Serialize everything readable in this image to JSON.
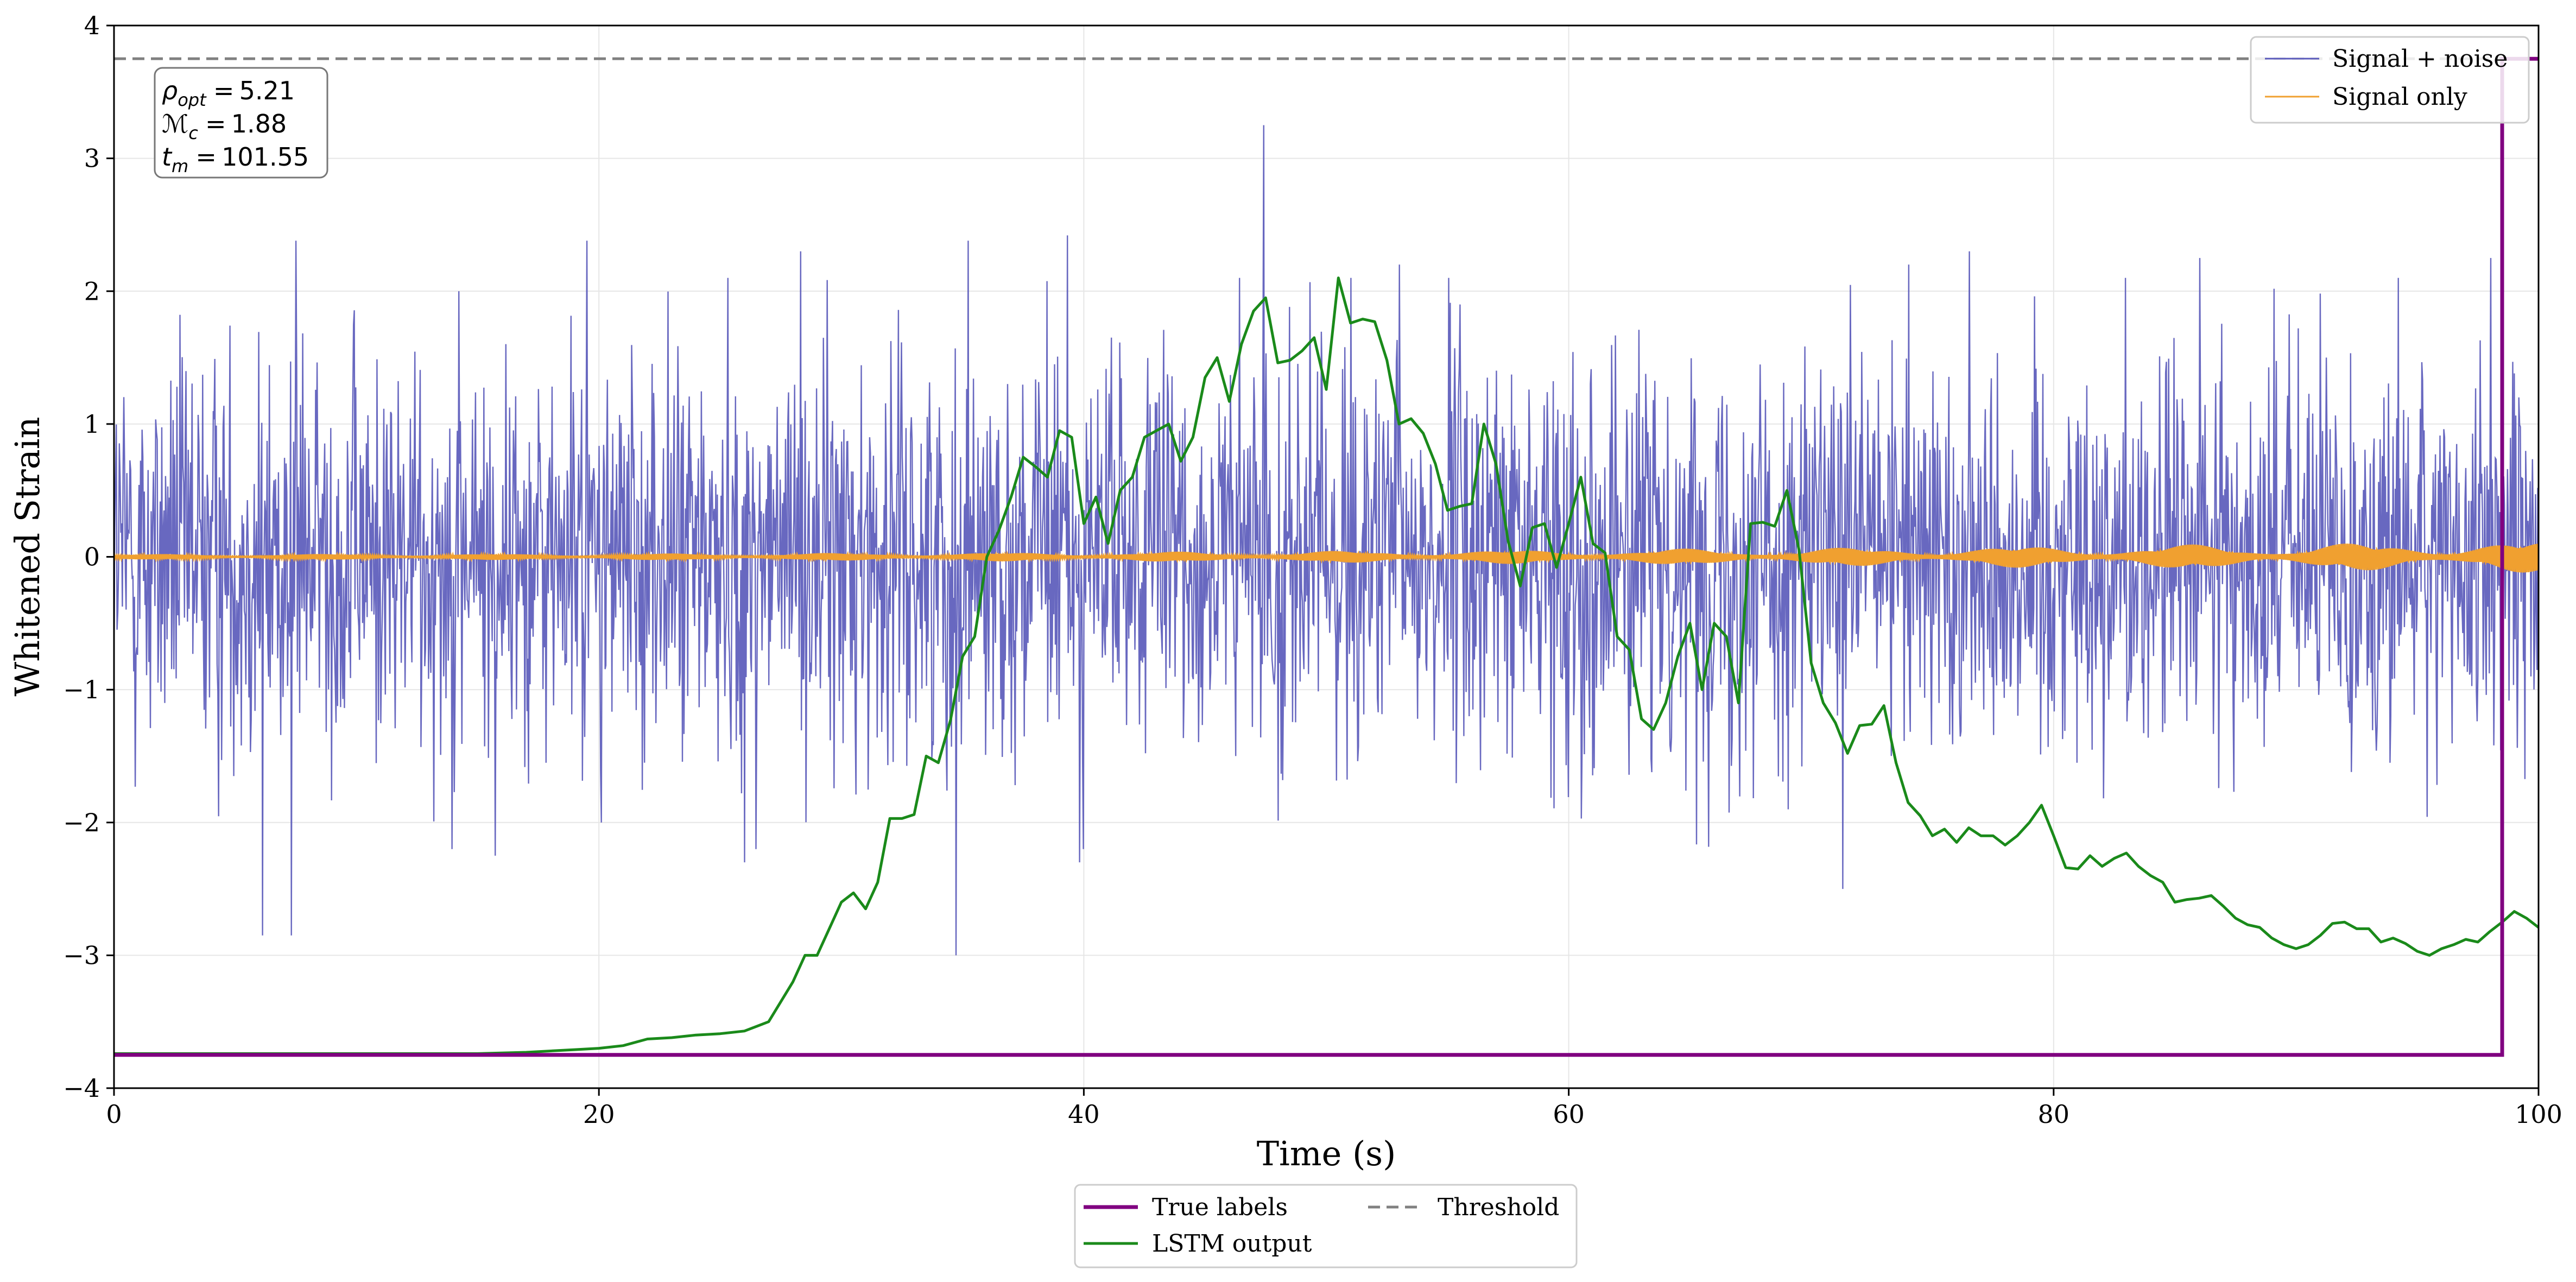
{
  "chart_data": {
    "type": "line",
    "title": "",
    "xlabel": "Time (s)",
    "ylabel": "Whitened Strain",
    "xlim": [
      0,
      100
    ],
    "ylim": [
      -4,
      4
    ],
    "xticks": [
      0,
      20,
      40,
      60,
      80,
      100
    ],
    "xtick_labels": [
      "0",
      "20",
      "40",
      "60",
      "80",
      "100"
    ],
    "yticks": [
      -4,
      -3,
      -2,
      -1,
      0,
      1,
      2,
      3,
      4
    ],
    "ytick_labels": [
      "−4",
      "−3",
      "−2",
      "−1",
      "0",
      "1",
      "2",
      "3",
      "4"
    ],
    "grid": true,
    "annotation": {
      "lines": [
        {
          "sym": "ρ",
          "sub": "opt",
          "value": "5.21"
        },
        {
          "sym": "ℳ",
          "sub": "c",
          "value": "1.88"
        },
        {
          "sym": "t",
          "sub": "m",
          "value": "101.55"
        }
      ]
    },
    "legend_upper": {
      "placement": "top-right",
      "entries": [
        {
          "label": "Signal + noise",
          "color": "#5b5bbb"
        },
        {
          "label": "Signal only",
          "color": "#f0a030"
        }
      ]
    },
    "legend_lower": {
      "placement": "bottom-center",
      "entries": [
        {
          "label": "True labels",
          "color": "#800080",
          "style": "solid"
        },
        {
          "label": "LSTM output",
          "color": "#1a8a1a",
          "style": "solid"
        },
        {
          "label": "Threshold",
          "color": "#808080",
          "style": "dashed"
        }
      ]
    },
    "series": [
      {
        "name": "Signal + noise",
        "color": "#5b5bbb",
        "style": "noise",
        "sigma": 0.75,
        "x_range": [
          0,
          100
        ],
        "n_samples": 3200,
        "spikes": [
          [
            6.1,
            -2.85
          ],
          [
            7.3,
            -2.85
          ],
          [
            7.5,
            2.38
          ],
          [
            14.2,
            2.0
          ],
          [
            15.7,
            -2.25
          ],
          [
            19.5,
            2.38
          ],
          [
            20.1,
            -2.0
          ],
          [
            26.0,
            -2.3
          ],
          [
            28.3,
            2.3
          ],
          [
            34.7,
            -3.0
          ],
          [
            35.2,
            2.38
          ],
          [
            39.3,
            2.42
          ],
          [
            39.8,
            -2.3
          ],
          [
            47.4,
            3.25
          ],
          [
            51.0,
            2.1
          ],
          [
            53.0,
            2.2
          ],
          [
            55.5,
            1.9
          ],
          [
            71.3,
            -2.5
          ],
          [
            74.0,
            2.2
          ],
          [
            76.5,
            2.3
          ],
          [
            86.0,
            2.25
          ],
          [
            98.0,
            2.25
          ]
        ]
      },
      {
        "name": "Signal only",
        "color": "#f0a030",
        "style": "chirp",
        "x_range": [
          0,
          100
        ],
        "amplitude_start": 0.02,
        "amplitude_end": 0.12
      },
      {
        "name": "True labels",
        "color": "#800080",
        "style": "step",
        "points": [
          [
            0,
            -3.75
          ],
          [
            98.5,
            -3.75
          ],
          [
            98.5,
            3.75
          ],
          [
            100,
            3.75
          ]
        ]
      },
      {
        "name": "LSTM output",
        "color": "#1a8a1a",
        "style": "line",
        "points": [
          [
            0,
            -3.74
          ],
          [
            10,
            -3.74
          ],
          [
            15,
            -3.74
          ],
          [
            17,
            -3.73
          ],
          [
            19,
            -3.71
          ],
          [
            20,
            -3.7
          ],
          [
            21,
            -3.68
          ],
          [
            22,
            -3.63
          ],
          [
            23,
            -3.62
          ],
          [
            24,
            -3.6
          ],
          [
            25,
            -3.59
          ],
          [
            26,
            -3.57
          ],
          [
            27,
            -3.5
          ],
          [
            28,
            -3.2
          ],
          [
            28.5,
            -3.0
          ],
          [
            29,
            -3.0
          ],
          [
            29.5,
            -2.8
          ],
          [
            30,
            -2.6
          ],
          [
            30.5,
            -2.53
          ],
          [
            31,
            -2.65
          ],
          [
            31.5,
            -2.45
          ],
          [
            32,
            -1.97
          ],
          [
            32.5,
            -1.97
          ],
          [
            33,
            -1.94
          ],
          [
            33.5,
            -1.5
          ],
          [
            34,
            -1.55
          ],
          [
            34.5,
            -1.23
          ],
          [
            35,
            -0.75
          ],
          [
            35.5,
            -0.6
          ],
          [
            36,
            0.0
          ],
          [
            36.5,
            0.2
          ],
          [
            37,
            0.45
          ],
          [
            37.5,
            0.75
          ],
          [
            38,
            0.68
          ],
          [
            38.5,
            0.6
          ],
          [
            39,
            0.95
          ],
          [
            39.5,
            0.9
          ],
          [
            40,
            0.25
          ],
          [
            40.5,
            0.45
          ],
          [
            41,
            0.1
          ],
          [
            41.5,
            0.5
          ],
          [
            42,
            0.6
          ],
          [
            42.5,
            0.9
          ],
          [
            43,
            0.95
          ],
          [
            43.5,
            1.0
          ],
          [
            44,
            0.72
          ],
          [
            44.5,
            0.9
          ],
          [
            45,
            1.35
          ],
          [
            45.5,
            1.5
          ],
          [
            46,
            1.17
          ],
          [
            46.5,
            1.6
          ],
          [
            47,
            1.85
          ],
          [
            47.5,
            1.95
          ],
          [
            48,
            1.46
          ],
          [
            48.5,
            1.48
          ],
          [
            49,
            1.55
          ],
          [
            49.5,
            1.65
          ],
          [
            50,
            1.26
          ],
          [
            50.5,
            2.1
          ],
          [
            51,
            1.76
          ],
          [
            51.5,
            1.79
          ],
          [
            52,
            1.77
          ],
          [
            52.5,
            1.48
          ],
          [
            53,
            1.0
          ],
          [
            53.5,
            1.04
          ],
          [
            54,
            0.93
          ],
          [
            54.5,
            0.7
          ],
          [
            55,
            0.35
          ],
          [
            55.5,
            0.38
          ],
          [
            56,
            0.4
          ],
          [
            56.5,
            1.0
          ],
          [
            57,
            0.7
          ],
          [
            57.5,
            0.12
          ],
          [
            58,
            -0.22
          ],
          [
            58.5,
            0.22
          ],
          [
            59,
            0.25
          ],
          [
            59.5,
            -0.08
          ],
          [
            60,
            0.25
          ],
          [
            60.5,
            0.6
          ],
          [
            61,
            0.1
          ],
          [
            61.5,
            0.03
          ],
          [
            62,
            -0.6
          ],
          [
            62.5,
            -0.7
          ],
          [
            63,
            -1.22
          ],
          [
            63.5,
            -1.3
          ],
          [
            64,
            -1.1
          ],
          [
            64.5,
            -0.75
          ],
          [
            65,
            -0.5
          ],
          [
            65.5,
            -1.0
          ],
          [
            66,
            -0.5
          ],
          [
            66.5,
            -0.6
          ],
          [
            67,
            -1.1
          ],
          [
            67.5,
            0.25
          ],
          [
            68,
            0.26
          ],
          [
            68.5,
            0.23
          ],
          [
            69,
            0.5
          ],
          [
            69.5,
            0.05
          ],
          [
            70,
            -0.8
          ],
          [
            70.5,
            -1.1
          ],
          [
            71,
            -1.25
          ],
          [
            71.5,
            -1.48
          ],
          [
            72,
            -1.27
          ],
          [
            72.5,
            -1.26
          ],
          [
            73,
            -1.12
          ],
          [
            73.5,
            -1.55
          ],
          [
            74,
            -1.85
          ],
          [
            74.5,
            -1.95
          ],
          [
            75,
            -2.1
          ],
          [
            75.5,
            -2.05
          ],
          [
            76,
            -2.15
          ],
          [
            76.5,
            -2.04
          ],
          [
            77,
            -2.1
          ],
          [
            77.5,
            -2.1
          ],
          [
            78,
            -2.17
          ],
          [
            78.5,
            -2.1
          ],
          [
            79,
            -2.0
          ],
          [
            79.5,
            -1.87
          ],
          [
            80,
            -2.1
          ],
          [
            80.5,
            -2.34
          ],
          [
            81,
            -2.35
          ],
          [
            81.5,
            -2.25
          ],
          [
            82,
            -2.33
          ],
          [
            82.5,
            -2.27
          ],
          [
            83,
            -2.23
          ],
          [
            83.5,
            -2.33
          ],
          [
            84,
            -2.4
          ],
          [
            84.5,
            -2.45
          ],
          [
            85,
            -2.6
          ],
          [
            85.5,
            -2.58
          ],
          [
            86,
            -2.57
          ],
          [
            86.5,
            -2.55
          ],
          [
            87,
            -2.63
          ],
          [
            87.5,
            -2.72
          ],
          [
            88,
            -2.77
          ],
          [
            88.5,
            -2.79
          ],
          [
            89,
            -2.87
          ],
          [
            89.5,
            -2.92
          ],
          [
            90,
            -2.95
          ],
          [
            90.5,
            -2.92
          ],
          [
            91,
            -2.85
          ],
          [
            91.5,
            -2.76
          ],
          [
            92,
            -2.75
          ],
          [
            92.5,
            -2.8
          ],
          [
            93,
            -2.8
          ],
          [
            93.5,
            -2.9
          ],
          [
            94,
            -2.87
          ],
          [
            94.5,
            -2.91
          ],
          [
            95,
            -2.97
          ],
          [
            95.5,
            -3.0
          ],
          [
            96,
            -2.95
          ],
          [
            96.5,
            -2.92
          ],
          [
            97,
            -2.88
          ],
          [
            97.5,
            -2.9
          ],
          [
            98,
            -2.82
          ],
          [
            98.5,
            -2.75
          ],
          [
            99,
            -2.67
          ],
          [
            99.5,
            -2.72
          ],
          [
            100,
            -2.79
          ]
        ]
      },
      {
        "name": "Threshold",
        "color": "#808080",
        "style": "dashed",
        "y": 3.75
      }
    ]
  }
}
